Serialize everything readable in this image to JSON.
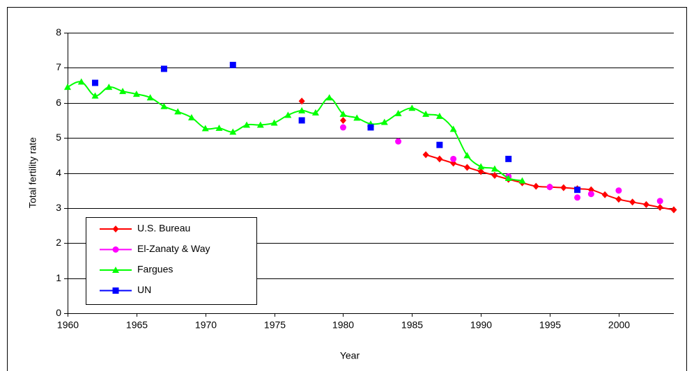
{
  "chart_data": {
    "type": "line",
    "xlabel": "Year",
    "ylabel": "Total fertility rate",
    "xlim": [
      1960,
      2004
    ],
    "xticks": [
      1960,
      1965,
      1970,
      1975,
      1980,
      1985,
      1990,
      1995,
      2000
    ],
    "ylim": [
      0,
      8
    ],
    "yticks": [
      0,
      1,
      2,
      3,
      4,
      5,
      6,
      7,
      8
    ],
    "grid": true,
    "legend": "lower left",
    "series": [
      {
        "name": "U.S. Bureau",
        "color": "#ff0000",
        "marker": "diamond",
        "line": true,
        "x": [
          1977,
          1978,
          1980,
          1981,
          1986,
          1987,
          1988,
          1989,
          1990,
          1991,
          1992,
          1993,
          1994,
          1995,
          1996,
          1997,
          1998,
          1999,
          2000,
          2001,
          2002,
          2003,
          2004
        ],
        "values": [
          6.05,
          null,
          5.5,
          null,
          4.52,
          4.4,
          4.28,
          4.16,
          4.04,
          3.93,
          3.82,
          3.72,
          3.62,
          3.6,
          3.58,
          3.55,
          3.52,
          3.38,
          3.25,
          3.17,
          3.1,
          3.02,
          2.95
        ]
      },
      {
        "name": "El-Zanaty & Way",
        "color": "#ff00ff",
        "marker": "circle",
        "line": false,
        "x": [
          1980,
          1984,
          1988,
          1992,
          1995,
          1997,
          1998,
          2000,
          2003
        ],
        "values": [
          5.3,
          4.9,
          4.4,
          3.9,
          3.6,
          3.3,
          3.4,
          3.5,
          3.2
        ]
      },
      {
        "name": "Fargues",
        "color": "#00ff00",
        "marker": "triangle",
        "line": true,
        "x": [
          1960,
          1961,
          1962,
          1963,
          1964,
          1965,
          1966,
          1967,
          1968,
          1969,
          1970,
          1971,
          1972,
          1973,
          1974,
          1975,
          1976,
          1977,
          1978,
          1979,
          1980,
          1981,
          1982,
          1983,
          1984,
          1985,
          1986,
          1987,
          1988,
          1989,
          1990,
          1991,
          1992,
          1993
        ],
        "values": [
          6.45,
          6.6,
          6.2,
          6.45,
          6.33,
          6.25,
          6.15,
          5.9,
          5.75,
          5.58,
          5.27,
          5.28,
          5.17,
          5.37,
          5.37,
          5.43,
          5.65,
          5.78,
          5.72,
          6.15,
          5.68,
          5.57,
          5.4,
          5.45,
          5.7,
          5.85,
          5.68,
          5.62,
          5.25,
          4.5,
          4.18,
          4.12,
          3.85,
          3.78
        ]
      },
      {
        "name": "UN",
        "color": "#0000ff",
        "marker": "square",
        "line": false,
        "x": [
          1962,
          1967,
          1972,
          1977,
          1982,
          1987,
          1992,
          1997
        ],
        "values": [
          6.57,
          6.97,
          7.08,
          5.5,
          5.3,
          4.8,
          4.4,
          3.52
        ]
      }
    ]
  }
}
